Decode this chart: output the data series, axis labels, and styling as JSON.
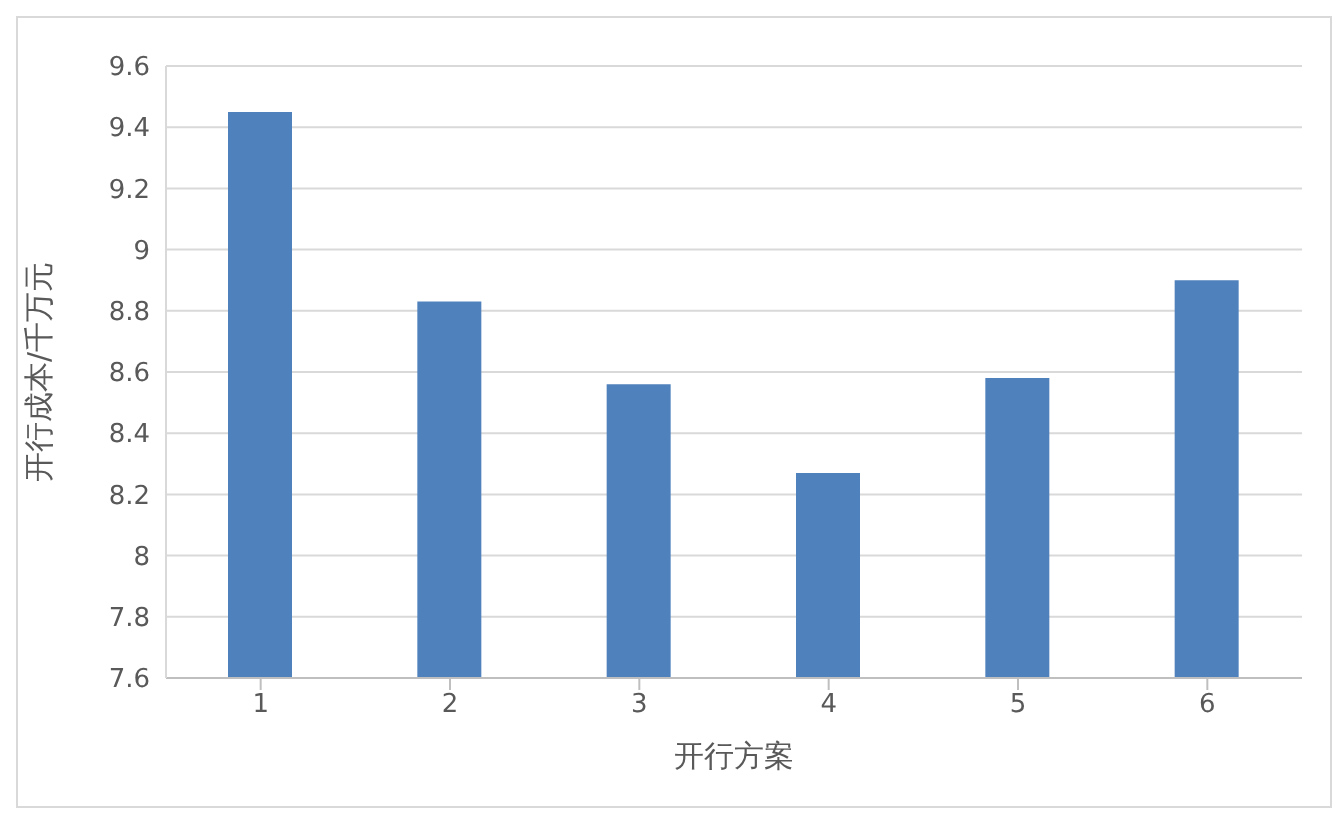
{
  "chart_data": {
    "type": "bar",
    "xlabel": "开行方案",
    "ylabel": "开行成本/千万元",
    "categories": [
      "1",
      "2",
      "3",
      "4",
      "5",
      "6"
    ],
    "values": [
      9.45,
      8.83,
      8.56,
      8.27,
      8.58,
      8.9
    ],
    "color": "#4f81bd",
    "ylim": [
      7.6,
      9.6
    ],
    "yticks": [
      7.6,
      7.8,
      8,
      8.2,
      8.4,
      8.6,
      8.8,
      9,
      9.2,
      9.4,
      9.6
    ],
    "grid": "y"
  }
}
